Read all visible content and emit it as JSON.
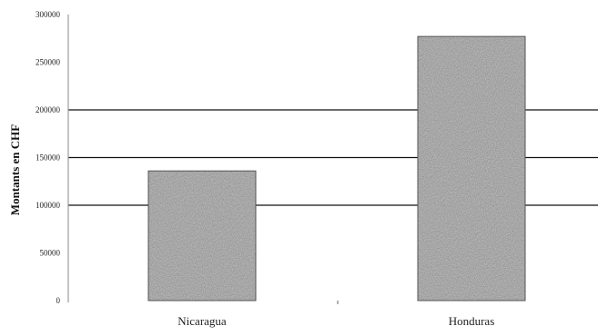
{
  "chart_data": {
    "type": "bar",
    "title": "",
    "xlabel": "",
    "ylabel": "Montants en CHF",
    "categories": [
      "Nicaragua",
      "Honduras"
    ],
    "values": [
      136000,
      277000
    ],
    "ylim": [
      0,
      300000
    ],
    "y_ticks": [
      0,
      50000,
      100000,
      150000,
      200000,
      250000,
      300000
    ],
    "y_tick_labels": [
      "0",
      "50000",
      "100000",
      "150000",
      "200000",
      "250000",
      "300000"
    ],
    "gridlines": [
      100000,
      150000,
      200000
    ],
    "grid": true,
    "legend": "none",
    "bar_color": "#9a9a9a"
  }
}
